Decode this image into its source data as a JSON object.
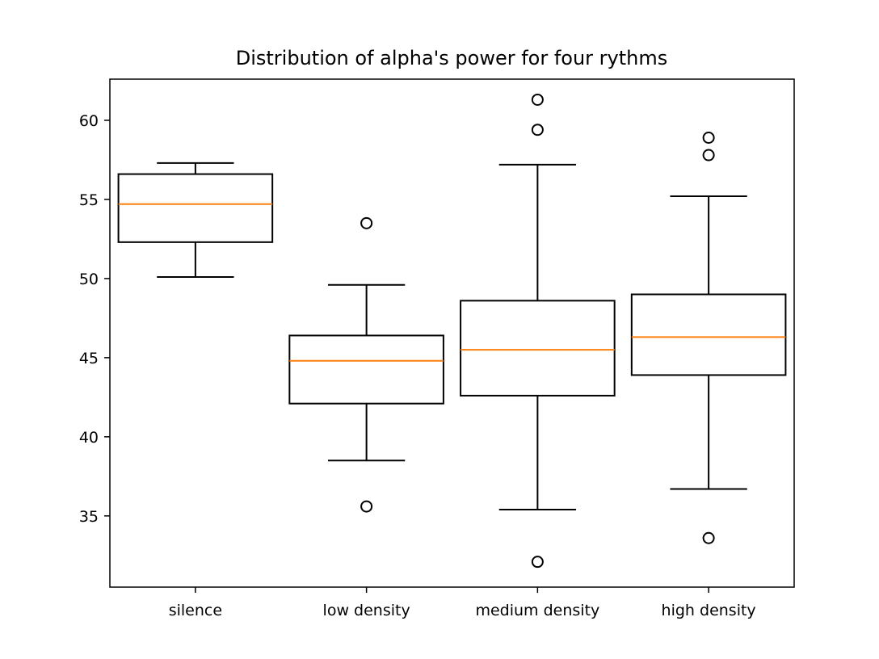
{
  "chart_data": {
    "type": "box",
    "title": "Distribution of alpha's power for four rythms",
    "xlabel": "",
    "ylabel": "",
    "ylim": [
      30.5,
      62.6
    ],
    "yticks": [
      35,
      40,
      45,
      50,
      55,
      60
    ],
    "categories": [
      "silence",
      "low density",
      "medium density",
      "high density"
    ],
    "boxes": [
      {
        "category": "silence",
        "whisker_low": 50.1,
        "q1": 52.3,
        "median": 54.7,
        "q3": 56.6,
        "whisker_high": 57.3,
        "outliers": []
      },
      {
        "category": "low density",
        "whisker_low": 38.5,
        "q1": 42.1,
        "median": 44.8,
        "q3": 46.4,
        "whisker_high": 49.6,
        "outliers": [
          53.5,
          35.6
        ]
      },
      {
        "category": "medium density",
        "whisker_low": 35.4,
        "q1": 42.6,
        "median": 45.5,
        "q3": 48.6,
        "whisker_high": 57.2,
        "outliers": [
          61.3,
          59.4,
          32.1
        ]
      },
      {
        "category": "high density",
        "whisker_low": 36.7,
        "q1": 43.9,
        "median": 46.3,
        "q3": 49.0,
        "whisker_high": 55.2,
        "outliers": [
          58.9,
          57.8,
          33.6
        ]
      }
    ],
    "grid": false,
    "colors": {
      "box": "#000000",
      "median": "#ff7f0e",
      "outlier": "#000000"
    }
  }
}
